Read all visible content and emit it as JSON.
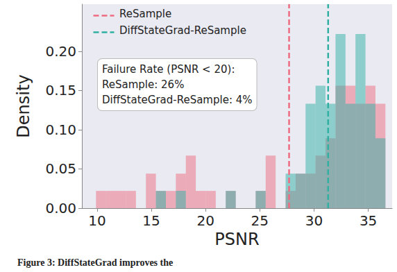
{
  "chart_data": {
    "type": "histogram",
    "x_label": "PSNR",
    "y_label": "Density",
    "caption": "Figure 3: DiffStateGrad improves the",
    "annotation": [
      "Failure Rate (PSNR < 20):",
      "ReSample: 26%",
      "DiffStateGrad-ReSample: 4%"
    ],
    "bins": [
      9.9,
      10.82,
      11.74,
      12.66,
      13.58,
      14.5,
      15.42,
      16.34,
      17.26,
      18.18,
      19.1,
      20.02,
      20.94,
      21.86,
      22.78,
      23.7,
      24.62,
      25.54,
      26.46,
      27.38,
      28.3,
      29.22,
      30.14,
      31.06,
      31.98,
      32.9,
      33.82,
      34.74,
      35.66,
      36.58
    ],
    "series": [
      {
        "name": "ReSample",
        "color": "#ee6b80",
        "mean": 27.7,
        "values": [
          0.022,
          0.022,
          0.022,
          0.022,
          0,
          0.044,
          0.022,
          0.022,
          0.044,
          0.067,
          0.022,
          0.022,
          0,
          0.022,
          0,
          0,
          0.022,
          0.067,
          0,
          0.022,
          0.044,
          0.044,
          0.067,
          0.089,
          0.156,
          0.156,
          0.133,
          0.156,
          0.133
        ]
      },
      {
        "name": "DiffStateGrad-ReSample",
        "color": "#2fb0a3",
        "mean": 31.3,
        "values": [
          0,
          0,
          0,
          0,
          0,
          0,
          0.022,
          0,
          0.022,
          0,
          0,
          0,
          0,
          0.022,
          0,
          0,
          0.022,
          0,
          0,
          0.044,
          0.044,
          0.133,
          0.156,
          0.133,
          0.222,
          0.133,
          0.222,
          0.133,
          0.089
        ]
      }
    ],
    "xlim": [
      8.6,
      37.2
    ],
    "xticks": [
      10,
      15,
      20,
      25,
      30,
      35
    ],
    "ylim": [
      0,
      0.26
    ],
    "yticks": [
      {
        "value": 0,
        "label": "0.00"
      },
      {
        "value": 0.05,
        "label": "0.05"
      },
      {
        "value": 0.1,
        "label": "0.10"
      },
      {
        "value": 0.15,
        "label": "0.15"
      },
      {
        "value": 0.2,
        "label": "0.20"
      }
    ],
    "legend": "upper left",
    "grid": false
  }
}
